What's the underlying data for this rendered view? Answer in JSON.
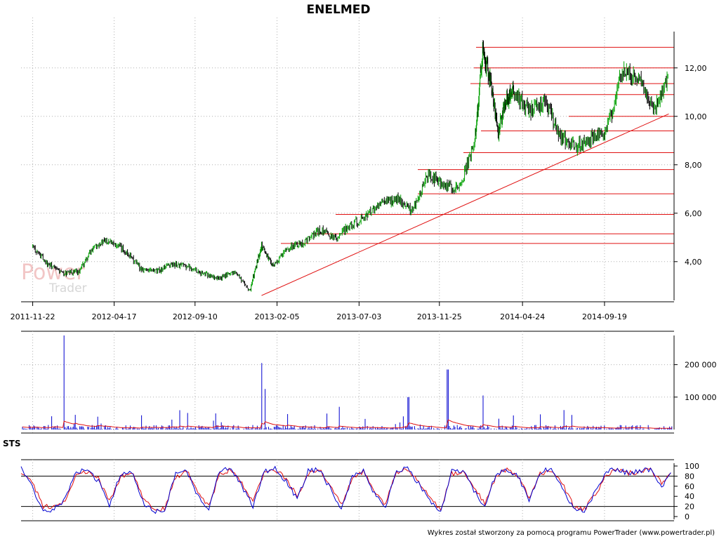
{
  "title": "ENELMED",
  "watermark": {
    "line1": "Power",
    "line2": "Trader"
  },
  "footer": "Wykres został stworzony za pomocą programu PowerTrader (www.powertrader.pl)",
  "colors": {
    "price_up": "#00a000",
    "price_down": "#000000",
    "support_lines": "#e01010",
    "trend_line": "#e01010",
    "volume_bars": "#0000d0",
    "volume_ma": "#e01010",
    "sts_fast": "#0000d0",
    "sts_slow": "#e01010",
    "grid": "#b0b0b0"
  },
  "chart_data": [
    {
      "type": "line",
      "panel": "price",
      "title": "ENELMED",
      "x_ticks": [
        "2011-11-22",
        "2012-04-17",
        "2012-09-10",
        "2013-02-05",
        "2013-07-03",
        "2013-11-25",
        "2014-04-24",
        "2014-09-19"
      ],
      "y_ticks": [
        "4,00",
        "6,00",
        "8,00",
        "10,00",
        "12,00"
      ],
      "ylim": [
        2.4,
        13.5
      ],
      "grid": true,
      "series": [
        {
          "x": [
            "2011-11-22",
            "2011-12-20",
            "2012-01-17",
            "2012-02-14",
            "2012-03-13",
            "2012-04-10",
            "2012-05-08",
            "2012-06-05",
            "2012-07-03",
            "2012-07-31",
            "2012-08-28",
            "2012-09-25",
            "2012-10-23",
            "2012-11-20",
            "2012-12-18",
            "2013-01-08",
            "2013-01-29",
            "2013-02-26",
            "2013-03-26",
            "2013-04-23",
            "2013-05-21",
            "2013-06-18",
            "2013-07-16",
            "2013-08-13",
            "2013-09-10",
            "2013-10-08",
            "2013-11-05",
            "2013-12-03",
            "2013-12-31",
            "2014-01-28",
            "2014-02-11",
            "2014-02-25",
            "2014-03-11",
            "2014-03-25",
            "2014-04-08",
            "2014-05-06",
            "2014-06-03",
            "2014-07-01",
            "2014-07-29",
            "2014-08-26",
            "2014-09-23",
            "2014-10-21",
            "2014-11-18",
            "2014-12-16",
            "2015-01-13"
          ],
          "y": [
            4.6,
            3.9,
            3.5,
            3.6,
            4.7,
            4.9,
            4.4,
            3.7,
            3.6,
            3.9,
            3.8,
            3.5,
            3.3,
            3.6,
            2.8,
            4.7,
            3.8,
            4.6,
            4.8,
            5.3,
            5.0,
            5.5,
            5.9,
            6.4,
            6.6,
            6.1,
            7.6,
            7.1,
            7.0,
            9.0,
            12.7,
            11.5,
            9.3,
            10.7,
            11.0,
            10.2,
            10.6,
            9.2,
            8.7,
            9.1,
            9.4,
            11.8,
            11.6,
            10.3,
            11.6
          ]
        }
      ],
      "horizontal_levels": [
        4.75,
        5.15,
        5.95,
        6.8,
        7.8,
        8.5,
        9.4,
        10.0,
        10.9,
        11.35,
        12.0,
        12.85
      ],
      "trend_line": {
        "from": [
          "2013-01-08",
          2.6
        ],
        "to": [
          "2015-01-13",
          10.1
        ]
      }
    },
    {
      "type": "bar",
      "panel": "volume",
      "y_ticks": [
        "100 000",
        "200 000"
      ],
      "ylim": [
        0,
        290000
      ],
      "grid": true,
      "spikes": [
        {
          "x": "2012-01-17",
          "value": 290000
        },
        {
          "x": "2013-01-08",
          "value": 205000
        },
        {
          "x": "2013-01-15",
          "value": 125000
        },
        {
          "x": "2013-05-28",
          "value": 70000
        },
        {
          "x": "2013-09-30",
          "value": 100000
        },
        {
          "x": "2013-12-10",
          "value": 185000
        },
        {
          "x": "2014-02-11",
          "value": 105000
        },
        {
          "x": "2014-07-08",
          "value": 60000
        }
      ],
      "moving_average_level": 8000
    },
    {
      "type": "line",
      "panel": "oscillator",
      "label": "STS",
      "y_ticks": [
        "0",
        "20",
        "40",
        "60",
        "80",
        "100"
      ],
      "ylim": [
        0,
        100
      ],
      "reference_levels": [
        20,
        80
      ],
      "series": [
        {
          "name": "fast",
          "values": [
            95,
            60,
            10,
            15,
            35,
            88,
            92,
            70,
            20,
            85,
            90,
            30,
            10,
            12,
            85,
            92,
            40,
            15,
            90,
            94,
            60,
            20,
            88,
            95,
            70,
            35,
            90,
            93,
            55,
            15,
            80,
            92,
            45,
            18,
            92,
            95,
            65,
            30,
            10,
            90,
            92,
            50,
            20,
            85,
            94,
            80,
            30,
            88,
            95,
            60,
            15,
            10,
            50,
            88,
            95,
            85,
            90,
            94,
            60,
            92
          ]
        },
        {
          "name": "slow",
          "values": [
            90,
            70,
            20,
            18,
            30,
            80,
            90,
            75,
            30,
            78,
            88,
            40,
            15,
            14,
            78,
            90,
            48,
            20,
            85,
            92,
            66,
            28,
            84,
            93,
            74,
            42,
            86,
            92,
            60,
            22,
            76,
            90,
            52,
            24,
            88,
            94,
            70,
            36,
            14,
            84,
            90,
            56,
            26,
            80,
            92,
            82,
            36,
            84,
            93,
            66,
            22,
            14,
            44,
            82,
            93,
            86,
            89,
            92,
            66,
            90
          ]
        }
      ]
    }
  ]
}
